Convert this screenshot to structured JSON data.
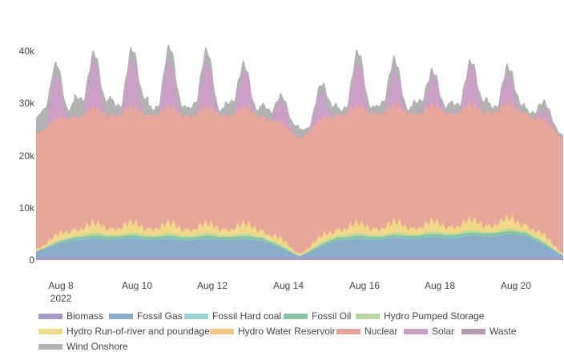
{
  "chart_data": {
    "type": "area",
    "stacked": true,
    "x_tick_labels": [
      "Aug 8",
      "Aug 10",
      "Aug 12",
      "Aug 14",
      "Aug 16",
      "Aug 18",
      "Aug 20"
    ],
    "x_tick_sublabel": "2022",
    "x_range": [
      "2022-08-07",
      "2022-08-21"
    ],
    "y_tick_labels": [
      "0",
      "10k",
      "20k",
      "30k",
      "40k"
    ],
    "y_range": [
      -600,
      46000
    ],
    "grid": false,
    "legend_position": "bottom",
    "series": [
      {
        "name": "Biomass",
        "color": "#a99bc9",
        "values": [
          500,
          500,
          500,
          500,
          500,
          500,
          500,
          500,
          500,
          500,
          500,
          500,
          500,
          500,
          500
        ]
      },
      {
        "name": "Fossil Gas",
        "color": "#8aaec9",
        "values": [
          1200,
          3500,
          3700,
          3600,
          3500,
          3600,
          3400,
          200,
          3500,
          3600,
          3800,
          4000,
          4300,
          4500,
          300
        ]
      },
      {
        "name": "Fossil Hard coal",
        "color": "#99d3d3",
        "values": [
          0,
          60,
          60,
          60,
          60,
          60,
          60,
          0,
          60,
          60,
          60,
          60,
          60,
          60,
          0
        ]
      },
      {
        "name": "Fossil Oil",
        "color": "#86c3a3",
        "values": [
          0,
          500,
          500,
          500,
          500,
          500,
          500,
          0,
          500,
          500,
          500,
          500,
          500,
          500,
          0
        ]
      },
      {
        "name": "Hydro Pumped Storage",
        "color": "#b8d9a2",
        "values": [
          200,
          600,
          600,
          600,
          600,
          600,
          600,
          300,
          600,
          600,
          600,
          600,
          600,
          600,
          200
        ]
      },
      {
        "name": "Hydro Run-of-river and poundage",
        "color": "#f0d98a",
        "values": [
          500,
          2200,
          2300,
          2400,
          2300,
          2200,
          2200,
          600,
          2300,
          2400,
          2300,
          2300,
          2400,
          2400,
          600
        ]
      },
      {
        "name": "Hydro Water Reservoir",
        "color": "#f1c586",
        "values": [
          100,
          400,
          400,
          400,
          400,
          400,
          400,
          100,
          400,
          400,
          400,
          400,
          400,
          400,
          100
        ]
      },
      {
        "name": "Nuclear",
        "color": "#e8a69a",
        "values": [
          22500,
          21800,
          21900,
          22000,
          22000,
          22100,
          22100,
          22300,
          22200,
          22200,
          22100,
          22000,
          21900,
          21600,
          22300
        ]
      },
      {
        "name": "Solar",
        "color": "#cc9fc9",
        "values": [
          7000,
          9000,
          9000,
          8800,
          8200,
          8300,
          5500,
          3000,
          6400,
          9000,
          4500,
          6200,
          8000,
          3200,
          600
        ]
      },
      {
        "name": "Waste",
        "color": "#b69bb0",
        "values": [
          100,
          100,
          100,
          100,
          100,
          100,
          100,
          100,
          100,
          100,
          100,
          100,
          100,
          100,
          100
        ]
      },
      {
        "name": "Wind Onshore",
        "color": "#b2b2b2",
        "values": [
          4000,
          4000,
          3500,
          3500,
          3000,
          2700,
          2400,
          2300,
          2500,
          2700,
          2500,
          2200,
          2500,
          1900,
          1200
        ]
      }
    ]
  }
}
